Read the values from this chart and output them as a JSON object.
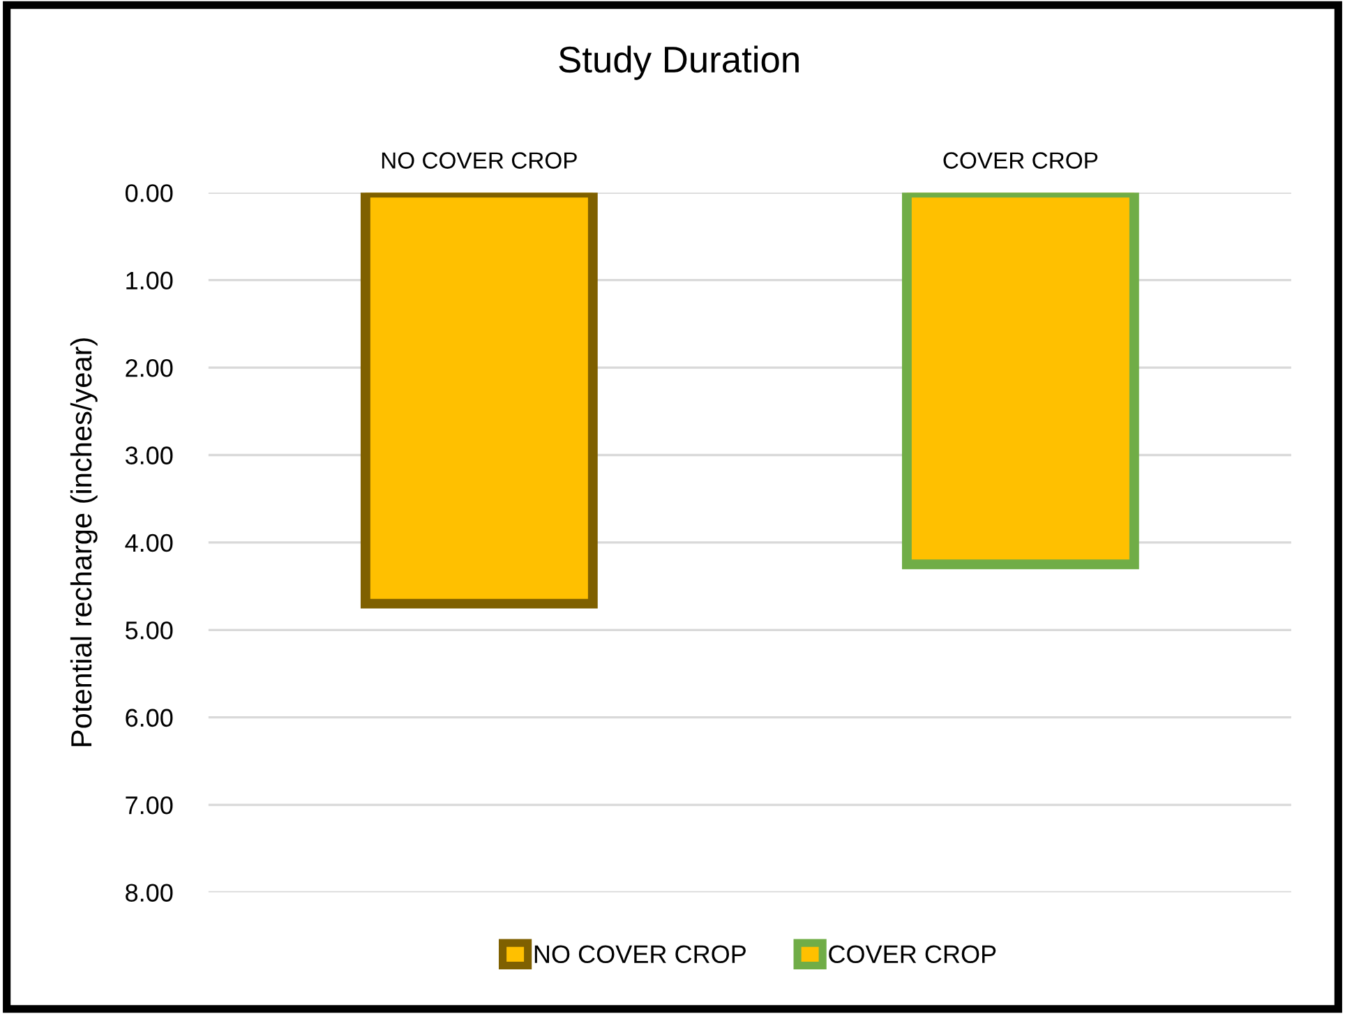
{
  "chart_data": {
    "type": "bar",
    "title": "Study Duration",
    "ylabel": "Potential recharge (inches/year)",
    "categories": [
      "NO COVER CROP",
      "COVER CROP"
    ],
    "series": [
      {
        "name": "NO COVER CROP",
        "color": "#7f6000",
        "colors": [
          "#ffc000",
          null
        ],
        "values": [
          4.7,
          null
        ]
      },
      {
        "name": "COVER CROP",
        "color": "#70ad47",
        "colors": [
          null,
          "#ffc000"
        ],
        "values": [
          null,
          4.25
        ]
      }
    ],
    "ylim": [
      8,
      0
    ],
    "yticks": [
      {
        "value": 0,
        "label": "0.00"
      },
      {
        "value": 1,
        "label": "1.00"
      },
      {
        "value": 2,
        "label": "2.00"
      },
      {
        "value": 3,
        "label": "3.00"
      },
      {
        "value": 4,
        "label": "4.00"
      },
      {
        "value": 5,
        "label": "5.00"
      },
      {
        "value": 6,
        "label": "6.00"
      },
      {
        "value": 7,
        "label": "7.00"
      },
      {
        "value": 8,
        "label": "8.00"
      }
    ],
    "grid": "y",
    "legend": "bottom"
  }
}
